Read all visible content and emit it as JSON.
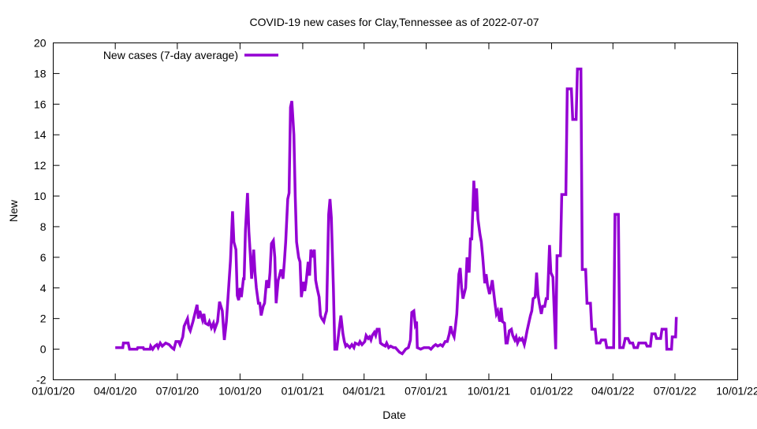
{
  "chart_data": {
    "type": "line",
    "title": "COVID-19 new cases for Clay,Tennessee as of 2022-07-07",
    "xlabel": "Date",
    "ylabel": "New",
    "x_unit": "days since 01/01/20",
    "xlim": [
      0,
      1004
    ],
    "ylim": [
      -2,
      20
    ],
    "grid": false,
    "legend_position": "top-left",
    "line_color": "#9400d3",
    "x_ticks": [
      {
        "day": 0,
        "label": "01/01/20"
      },
      {
        "day": 91,
        "label": "04/01/20"
      },
      {
        "day": 182,
        "label": "07/01/20"
      },
      {
        "day": 274,
        "label": "10/01/20"
      },
      {
        "day": 366,
        "label": "01/01/21"
      },
      {
        "day": 456,
        "label": "04/01/21"
      },
      {
        "day": 547,
        "label": "07/01/21"
      },
      {
        "day": 639,
        "label": "10/01/21"
      },
      {
        "day": 731,
        "label": "01/01/22"
      },
      {
        "day": 821,
        "label": "04/01/22"
      },
      {
        "day": 912,
        "label": "07/01/22"
      },
      {
        "day": 1004,
        "label": "10/01/22"
      }
    ],
    "y_ticks": [
      "-2",
      "0",
      "2",
      "4",
      "6",
      "8",
      "10",
      "12",
      "14",
      "16",
      "18",
      "20"
    ],
    "series": [
      {
        "name": "New cases (7-day average)",
        "x": [
          91,
          102,
          103,
          110,
          112,
          123,
          124,
          132,
          133,
          142,
          143,
          146,
          149,
          152,
          154,
          157,
          160,
          165,
          170,
          174,
          177,
          180,
          184,
          186,
          190,
          192,
          197,
          199,
          201,
          205,
          211,
          213,
          215,
          219,
          221,
          223,
          227,
          229,
          232,
          235,
          237,
          241,
          244,
          248,
          251,
          254,
          258,
          260,
          263,
          265,
          268,
          270,
          272,
          274,
          276,
          279,
          280,
          282,
          285,
          287,
          289,
          291,
          294,
          296,
          298,
          301,
          303,
          305,
          308,
          310,
          313,
          316,
          318,
          320,
          323,
          325,
          327,
          330,
          332,
          334,
          337,
          339,
          341,
          344,
          346,
          348,
          350,
          353,
          355,
          357,
          360,
          362,
          364,
          367,
          369,
          371,
          374,
          376,
          378,
          381,
          383,
          385,
          387,
          390,
          392,
          394,
          397,
          399,
          401,
          404,
          406,
          408,
          411,
          413,
          416,
          420,
          422,
          425,
          427,
          429,
          431,
          435,
          438,
          441,
          443,
          448,
          450,
          453,
          457,
          459,
          462,
          464,
          466,
          468,
          471,
          473,
          475,
          478,
          480,
          483,
          487,
          489,
          492,
          495,
          499,
          502,
          504,
          508,
          512,
          517,
          521,
          524,
          526,
          529,
          531,
          533,
          534,
          539,
          544,
          548,
          551,
          554,
          558,
          561,
          564,
          568,
          571,
          575,
          578,
          581,
          583,
          585,
          588,
          590,
          592,
          595,
          597,
          599,
          601,
          605,
          607,
          610,
          612,
          614,
          617,
          619,
          621,
          623,
          626,
          628,
          630,
          633,
          635,
          637,
          640,
          642,
          644,
          648,
          650,
          652,
          655,
          657,
          659,
          662,
          664,
          666,
          669,
          672,
          674,
          677,
          679,
          681,
          684,
          686,
          688,
          691,
          693,
          695,
          697,
          700,
          702,
          704,
          707,
          709,
          711,
          713,
          716,
          718,
          721,
          723,
          725,
          728,
          730,
          733,
          737,
          739,
          744,
          746,
          752,
          754,
          760,
          762,
          767,
          769,
          774,
          776,
          781,
          783,
          788,
          790,
          795,
          797,
          802,
          804,
          810,
          812,
          822,
          824,
          829,
          831,
          836,
          839,
          843,
          846,
          850,
          852,
          857,
          859,
          869,
          871,
          876,
          878,
          883,
          885,
          891,
          893,
          899,
          900,
          907,
          908,
          913,
          914
        ],
        "values": [
          0.1,
          0.1,
          0.4,
          0.4,
          0,
          0,
          0.1,
          0.1,
          0,
          0,
          0.2,
          0,
          0.2,
          0.3,
          0.1,
          0.4,
          0.2,
          0.4,
          0.3,
          0.1,
          0,
          0.5,
          0.5,
          0.3,
          0.8,
          1.5,
          2,
          1.4,
          1.2,
          1.8,
          2.9,
          2.0,
          2.5,
          1.9,
          2.3,
          1.7,
          1.6,
          1.8,
          1.4,
          1.7,
          1.3,
          1.8,
          3.1,
          2.5,
          0.6,
          1.8,
          4.5,
          5.8,
          9,
          7,
          6.5,
          3.5,
          3.2,
          4,
          3.4,
          4.6,
          4.6,
          7.8,
          10.2,
          7.7,
          6.2,
          4.6,
          6.5,
          5,
          4,
          3,
          3,
          2.2,
          2.8,
          3,
          4.5,
          4,
          5,
          6.9,
          7.1,
          6,
          3.0,
          4.5,
          4.8,
          5.2,
          4.6,
          5.7,
          7,
          9.8,
          10.2,
          15.8,
          16.2,
          14,
          10,
          7,
          6,
          5.7,
          3.4,
          4.4,
          3.8,
          4.4,
          5.7,
          4.8,
          6.5,
          6,
          6.5,
          4.5,
          4,
          3.4,
          2.2,
          2,
          1.8,
          2.2,
          2.5,
          8.8,
          9.8,
          8.6,
          4,
          0,
          0,
          1.5,
          2.2,
          1,
          0.5,
          0.2,
          0.3,
          0.1,
          0.3,
          0.1,
          0.4,
          0.3,
          0.5,
          0.3,
          0.5,
          0.9,
          0.7,
          0.8,
          0.6,
          0.9,
          1.1,
          0.9,
          1.3,
          1.3,
          0.4,
          0.3,
          0.2,
          0.4,
          0.1,
          0.2,
          0.1,
          0.1,
          0,
          -0.2,
          -0.3,
          0,
          0.1,
          0.6,
          2.4,
          2.5,
          1.6,
          1.8,
          0.1,
          0,
          0.1,
          0.1,
          0.1,
          0,
          0.2,
          0.3,
          0.2,
          0.3,
          0.2,
          0.5,
          0.5,
          1,
          1.5,
          1.1,
          0.8,
          1.5,
          2.3,
          4.9,
          5.3,
          4.0,
          3.3,
          4,
          6,
          5,
          7.2,
          7.2,
          11,
          9,
          10.5,
          8.5,
          7.5,
          7,
          6,
          4.3,
          4.9,
          4.2,
          3.6,
          4,
          4.5,
          3,
          2.3,
          2.5,
          1.8,
          2.7,
          1.8,
          1.7,
          0.4,
          0.4,
          1.2,
          1.3,
          0.9,
          0.6,
          0.8,
          0.4,
          0.7,
          0.6,
          0.7,
          0.3,
          0.7,
          1.2,
          1.6,
          2.2,
          2.5,
          3.3,
          3.4,
          5,
          3.6,
          3,
          2.3,
          2.8,
          2.8,
          3.3,
          3.3,
          6.8,
          5,
          4.7,
          0,
          6.1,
          6.1,
          10.1,
          10.1,
          17,
          17,
          15,
          15,
          18.3,
          18.3,
          5.2,
          5.2,
          3,
          3,
          1.3,
          1.3,
          0.4,
          0.4,
          0.6,
          0.6,
          0.1,
          0.1,
          8.8,
          8.8,
          0.1,
          0.1,
          0.7,
          0.7,
          0.4,
          0.4,
          0.1,
          0.1,
          0.4,
          0.4,
          0.2,
          0.2,
          1,
          1,
          0.7,
          0.7,
          1.3,
          1.3,
          0,
          0,
          0.8,
          0.8,
          2.1
        ]
      }
    ]
  }
}
